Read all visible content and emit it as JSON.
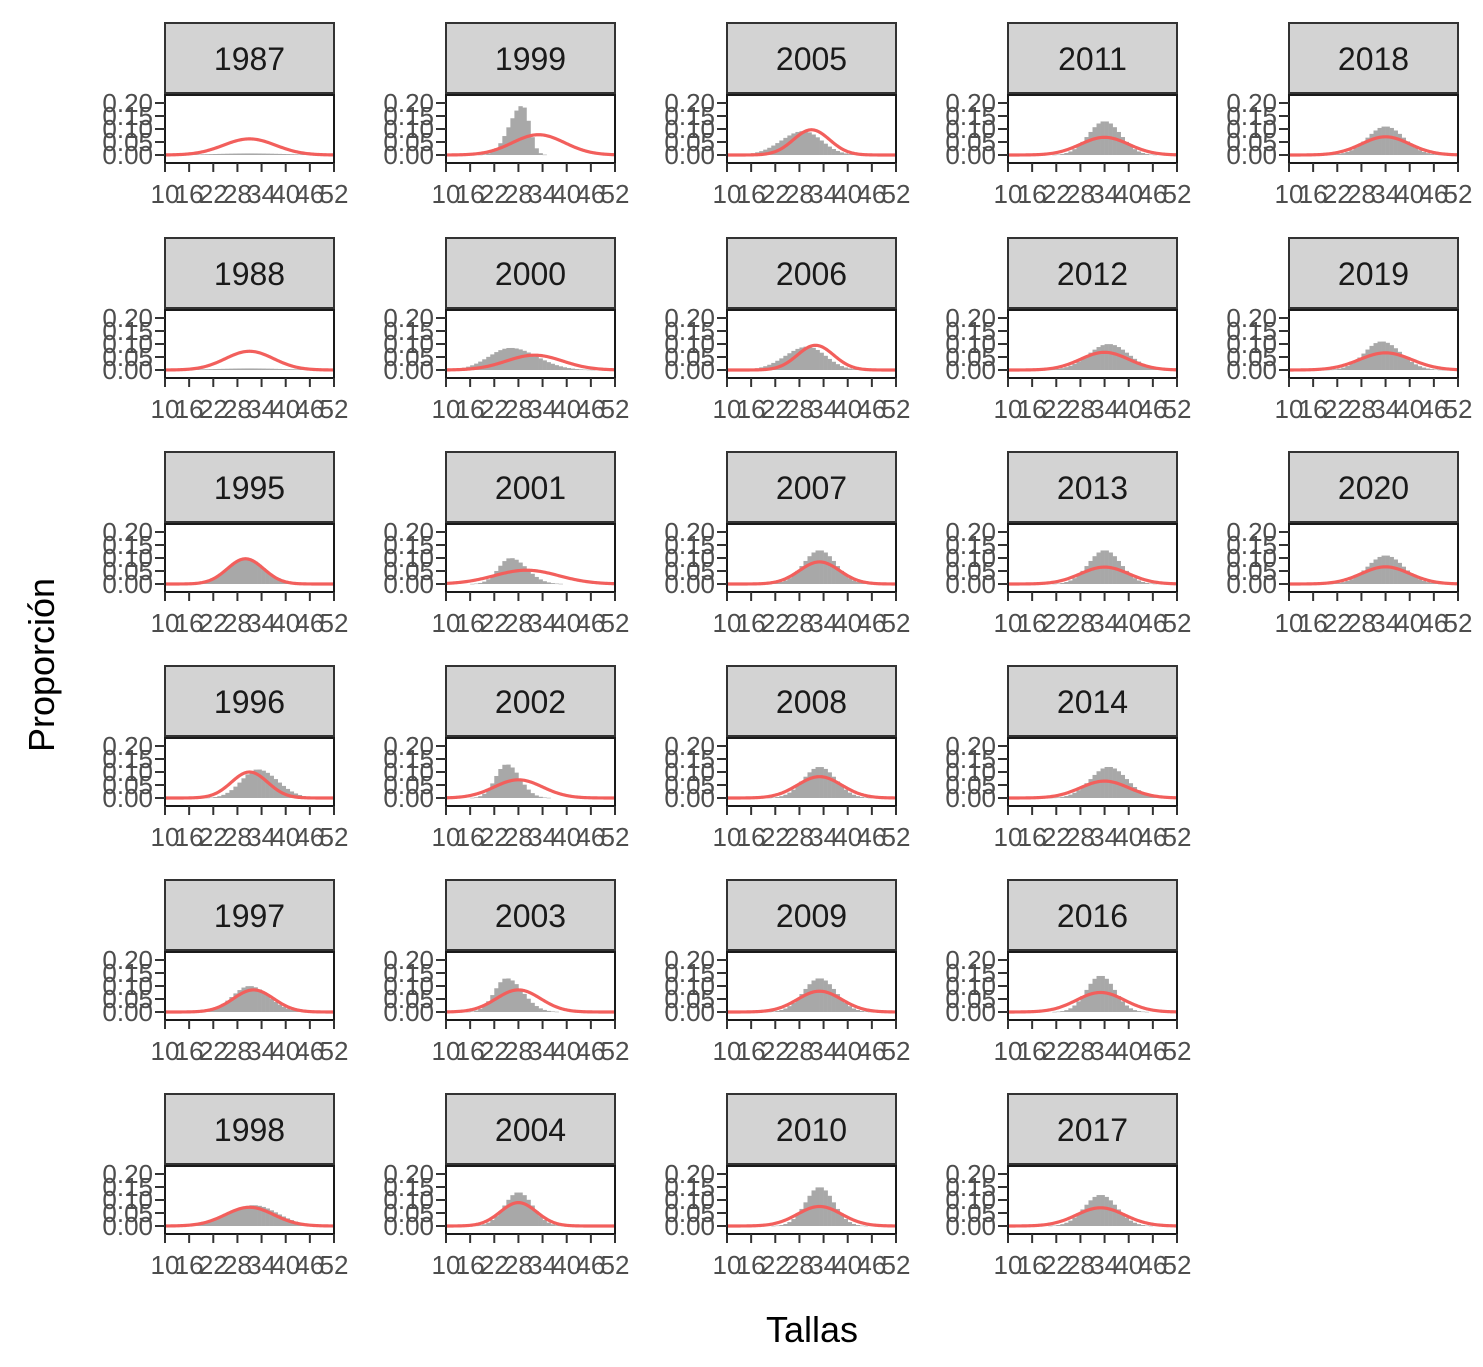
{
  "chart_data": {
    "type": "bar",
    "title": "",
    "xlabel": "Tallas",
    "ylabel": "Proporción",
    "xlim": [
      10,
      52
    ],
    "ylim": [
      0,
      0.2
    ],
    "x_ticks": [
      10,
      16,
      22,
      28,
      34,
      40,
      46,
      52
    ],
    "y_tick_labels": [
      "0.00",
      "0.05",
      "0.10",
      "0.15",
      "0.20"
    ],
    "y_ticks": [
      0,
      0.05,
      0.1,
      0.15,
      0.2
    ],
    "bin_width": 1,
    "colors": {
      "observed": "#a8a8a8",
      "fitted": "#f25f5c",
      "strip": "#d3d3d3"
    },
    "panels": [
      {
        "year": "1987",
        "row": 0,
        "col": 0,
        "obs_mean": 31,
        "obs_sd": 9,
        "obs_peak": 0.006,
        "obs_skew": 0,
        "fit_mean": 31,
        "fit_sd": 6.5,
        "fit_peak": 0.062
      },
      {
        "year": "1999",
        "row": 0,
        "col": 1,
        "obs_mean": 29,
        "obs_sd": 2.5,
        "obs_peak": 0.19,
        "obs_skew": -0.6,
        "fit_mean": 33,
        "fit_sd": 6.5,
        "fit_peak": 0.078
      },
      {
        "year": "2005",
        "row": 0,
        "col": 2,
        "obs_mean": 29,
        "obs_sd": 5,
        "obs_peak": 0.092,
        "obs_skew": -0.2,
        "fit_mean": 31,
        "fit_sd": 4.5,
        "fit_peak": 0.097
      },
      {
        "year": "2011",
        "row": 0,
        "col": 3,
        "obs_mean": 34,
        "obs_sd": 4,
        "obs_peak": 0.13,
        "obs_skew": 0,
        "fit_mean": 34,
        "fit_sd": 6,
        "fit_peak": 0.068
      },
      {
        "year": "2018",
        "row": 0,
        "col": 4,
        "obs_mean": 34,
        "obs_sd": 4.5,
        "obs_peak": 0.11,
        "obs_skew": 0,
        "fit_mean": 34,
        "fit_sd": 6,
        "fit_peak": 0.07
      },
      {
        "year": "1988",
        "row": 1,
        "col": 0,
        "obs_mean": 31,
        "obs_sd": 9,
        "obs_peak": 0.006,
        "obs_skew": 0,
        "fit_mean": 31,
        "fit_sd": 6,
        "fit_peak": 0.072
      },
      {
        "year": "2000",
        "row": 1,
        "col": 1,
        "obs_mean": 26,
        "obs_sd": 6,
        "obs_peak": 0.085,
        "obs_skew": 0.2,
        "fit_mean": 32,
        "fit_sd": 7,
        "fit_peak": 0.057
      },
      {
        "year": "2006",
        "row": 1,
        "col": 2,
        "obs_mean": 30,
        "obs_sd": 5,
        "obs_peak": 0.09,
        "obs_skew": -0.2,
        "fit_mean": 32,
        "fit_sd": 4.5,
        "fit_peak": 0.095
      },
      {
        "year": "2012",
        "row": 1,
        "col": 3,
        "obs_mean": 35,
        "obs_sd": 5,
        "obs_peak": 0.1,
        "obs_skew": 0,
        "fit_mean": 34,
        "fit_sd": 6,
        "fit_peak": 0.068
      },
      {
        "year": "2019",
        "row": 1,
        "col": 4,
        "obs_mean": 33,
        "obs_sd": 4.5,
        "obs_peak": 0.11,
        "obs_skew": 0.1,
        "fit_mean": 34,
        "fit_sd": 6.5,
        "fit_peak": 0.066
      },
      {
        "year": "1995",
        "row": 2,
        "col": 0,
        "obs_mean": 30,
        "obs_sd": 4.5,
        "obs_peak": 0.1,
        "obs_skew": 0,
        "fit_mean": 30,
        "fit_sd": 4.5,
        "fit_peak": 0.097
      },
      {
        "year": "2001",
        "row": 2,
        "col": 1,
        "obs_mean": 26,
        "obs_sd": 3.5,
        "obs_peak": 0.1,
        "obs_skew": 0.3,
        "fit_mean": 30,
        "fit_sd": 8,
        "fit_peak": 0.053
      },
      {
        "year": "2007",
        "row": 2,
        "col": 2,
        "obs_mean": 33,
        "obs_sd": 4,
        "obs_peak": 0.13,
        "obs_skew": 0,
        "fit_mean": 33,
        "fit_sd": 5,
        "fit_peak": 0.085
      },
      {
        "year": "2013",
        "row": 2,
        "col": 3,
        "obs_mean": 34,
        "obs_sd": 4,
        "obs_peak": 0.13,
        "obs_skew": 0,
        "fit_mean": 34,
        "fit_sd": 6,
        "fit_peak": 0.065
      },
      {
        "year": "2020",
        "row": 2,
        "col": 4,
        "obs_mean": 34,
        "obs_sd": 4.5,
        "obs_peak": 0.11,
        "obs_skew": 0,
        "fit_mean": 34,
        "fit_sd": 6,
        "fit_peak": 0.066
      },
      {
        "year": "1996",
        "row": 3,
        "col": 0,
        "obs_mean": 33,
        "obs_sd": 4.5,
        "obs_peak": 0.11,
        "obs_skew": 0.2,
        "fit_mean": 31,
        "fit_sd": 4.5,
        "fit_peak": 0.1
      },
      {
        "year": "2002",
        "row": 3,
        "col": 1,
        "obs_mean": 25,
        "obs_sd": 3,
        "obs_peak": 0.13,
        "obs_skew": 0.2,
        "fit_mean": 28,
        "fit_sd": 6,
        "fit_peak": 0.07
      },
      {
        "year": "2008",
        "row": 3,
        "col": 2,
        "obs_mean": 33,
        "obs_sd": 4,
        "obs_peak": 0.12,
        "obs_skew": 0,
        "fit_mean": 33,
        "fit_sd": 5.5,
        "fit_peak": 0.082
      },
      {
        "year": "2014",
        "row": 3,
        "col": 3,
        "obs_mean": 35,
        "obs_sd": 4.5,
        "obs_peak": 0.12,
        "obs_skew": 0,
        "fit_mean": 34,
        "fit_sd": 6,
        "fit_peak": 0.065
      },
      {
        "year": "1997",
        "row": 4,
        "col": 0,
        "obs_mean": 31,
        "obs_sd": 4.5,
        "obs_peak": 0.1,
        "obs_skew": 0.1,
        "fit_mean": 32,
        "fit_sd": 5,
        "fit_peak": 0.085
      },
      {
        "year": "2003",
        "row": 4,
        "col": 1,
        "obs_mean": 25,
        "obs_sd": 3.5,
        "obs_peak": 0.13,
        "obs_skew": 0.3,
        "fit_mean": 28,
        "fit_sd": 5.5,
        "fit_peak": 0.085
      },
      {
        "year": "2009",
        "row": 4,
        "col": 2,
        "obs_mean": 33,
        "obs_sd": 4,
        "obs_peak": 0.13,
        "obs_skew": 0,
        "fit_mean": 33,
        "fit_sd": 5.5,
        "fit_peak": 0.08
      },
      {
        "year": "2016",
        "row": 4,
        "col": 3,
        "obs_mean": 33,
        "obs_sd": 3.5,
        "obs_peak": 0.14,
        "obs_skew": 0,
        "fit_mean": 33,
        "fit_sd": 6,
        "fit_peak": 0.075
      },
      {
        "year": "1998",
        "row": 5,
        "col": 0,
        "obs_mean": 32,
        "obs_sd": 6,
        "obs_peak": 0.08,
        "obs_skew": 0,
        "fit_mean": 31,
        "fit_sd": 6,
        "fit_peak": 0.072
      },
      {
        "year": "2004",
        "row": 5,
        "col": 1,
        "obs_mean": 28,
        "obs_sd": 3.5,
        "obs_peak": 0.13,
        "obs_skew": 0,
        "fit_mean": 28,
        "fit_sd": 4.5,
        "fit_peak": 0.09
      },
      {
        "year": "2010",
        "row": 5,
        "col": 2,
        "obs_mean": 33,
        "obs_sd": 3.5,
        "obs_peak": 0.15,
        "obs_skew": 0,
        "fit_mean": 33,
        "fit_sd": 5.5,
        "fit_peak": 0.075
      },
      {
        "year": "2017",
        "row": 5,
        "col": 3,
        "obs_mean": 33,
        "obs_sd": 4,
        "obs_peak": 0.12,
        "obs_skew": 0,
        "fit_mean": 33,
        "fit_sd": 6,
        "fit_peak": 0.07
      }
    ]
  }
}
